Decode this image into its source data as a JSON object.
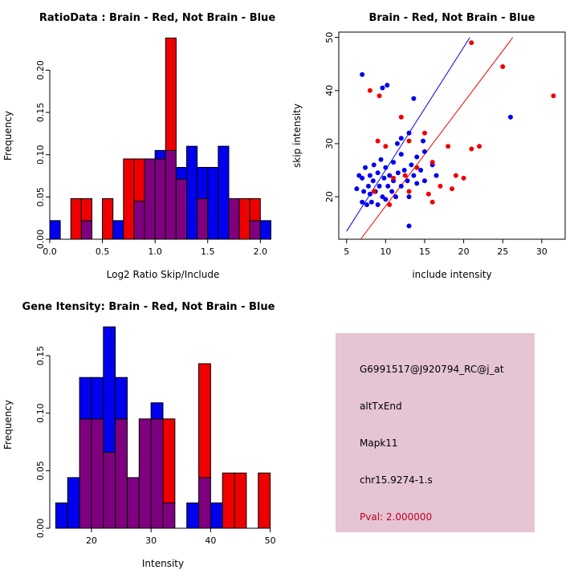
{
  "colors": {
    "red": "#EE0000",
    "blue": "#0000EE",
    "overlap": "#7F007F",
    "axis": "#000000",
    "info_bg": "#E5C4D4",
    "pval_text": "#C00020"
  },
  "chart_data": [
    {
      "type": "bar",
      "id": "ratio-histogram",
      "title": "RatioData : Brain - Red, Not Brain - Blue",
      "xlabel": "Log2 Ratio Skip/Include",
      "ylabel": "Frequency",
      "xlim": [
        0,
        2.15
      ],
      "ylim": [
        0,
        0.245
      ],
      "bin_width": 0.1,
      "bins": [
        0.0,
        0.1,
        0.2,
        0.3,
        0.4,
        0.5,
        0.6,
        0.7,
        0.8,
        0.9,
        1.0,
        1.1,
        1.2,
        1.3,
        1.4,
        1.5,
        1.6,
        1.7,
        1.8,
        1.9,
        2.0
      ],
      "xtick_vals": [
        0.0,
        0.5,
        1.0,
        1.5,
        2.0
      ],
      "xtick_labels": [
        "0.0",
        "0.5",
        "1.0",
        "1.5",
        "2.0"
      ],
      "ytick_vals": [
        0,
        0.05,
        0.1,
        0.15,
        0.2
      ],
      "ytick_labels": [
        "0.00",
        "0.05",
        "0.10",
        "0.15",
        "0.20"
      ],
      "series": [
        {
          "name": "Not Brain (blue)",
          "color": "blue",
          "values": [
            0.022,
            0,
            0,
            0.022,
            0,
            0,
            0.022,
            0,
            0.045,
            0.095,
            0.105,
            0.105,
            0.085,
            0.11,
            0.085,
            0.085,
            0.11,
            0.048,
            0,
            0.022,
            0.022
          ]
        },
        {
          "name": "Brain (red)",
          "color": "red",
          "values": [
            0,
            0,
            0.048,
            0.048,
            0,
            0.048,
            0,
            0.095,
            0.095,
            0.095,
            0.095,
            0.238,
            0.071,
            0,
            0.048,
            0,
            0,
            0.048,
            0.048,
            0.048,
            0
          ]
        }
      ]
    },
    {
      "type": "scatter",
      "id": "intensity-scatter",
      "title": "Brain - Red, Not Brain - Blue",
      "xlabel": "include intensity",
      "ylabel": "skip intensity",
      "xlim": [
        4,
        33
      ],
      "ylim": [
        12,
        51
      ],
      "xtick_vals": [
        5,
        10,
        15,
        20,
        25,
        30
      ],
      "xtick_labels": [
        "5",
        "10",
        "15",
        "20",
        "25",
        "30"
      ],
      "ytick_vals": [
        20,
        30,
        40,
        50
      ],
      "ytick_labels": [
        "20",
        "30",
        "40",
        "50"
      ],
      "series": [
        {
          "name": "Not Brain (blue)",
          "color": "blue",
          "points": [
            [
              6.3,
              21.5
            ],
            [
              6.6,
              24
            ],
            [
              7,
              19
            ],
            [
              7,
              23.5
            ],
            [
              7.2,
              21
            ],
            [
              7.4,
              25.5
            ],
            [
              7.6,
              18.5
            ],
            [
              7.8,
              22
            ],
            [
              8,
              20.5
            ],
            [
              8,
              24
            ],
            [
              8.2,
              19
            ],
            [
              8.4,
              23
            ],
            [
              8.5,
              26
            ],
            [
              8.7,
              21
            ],
            [
              9,
              18.5
            ],
            [
              9,
              24.5
            ],
            [
              9.2,
              22
            ],
            [
              9.4,
              27
            ],
            [
              9.6,
              20
            ],
            [
              9.8,
              23.5
            ],
            [
              10,
              19.5
            ],
            [
              10,
              25.5
            ],
            [
              10.3,
              22
            ],
            [
              10.5,
              24
            ],
            [
              10.8,
              21
            ],
            [
              11,
              23
            ],
            [
              11,
              26.5
            ],
            [
              11.3,
              20
            ],
            [
              11.6,
              24.5
            ],
            [
              12,
              22
            ],
            [
              12,
              28
            ],
            [
              12.4,
              25
            ],
            [
              12.8,
              23
            ],
            [
              13,
              20
            ],
            [
              13.3,
              26
            ],
            [
              13.6,
              24
            ],
            [
              14,
              22.5
            ],
            [
              14,
              27.5
            ],
            [
              14.5,
              25
            ],
            [
              15,
              23
            ],
            [
              15,
              28.5
            ],
            [
              16,
              26
            ],
            [
              16.5,
              24
            ],
            [
              12,
              31
            ],
            [
              13,
              32
            ],
            [
              11.5,
              30
            ],
            [
              14.8,
              30.5
            ],
            [
              7,
              43
            ],
            [
              9.6,
              40.5
            ],
            [
              10.2,
              41
            ],
            [
              13.6,
              38.5
            ],
            [
              26,
              35
            ],
            [
              13,
              14.5
            ]
          ]
        },
        {
          "name": "Brain (red)",
          "color": "red",
          "points": [
            [
              8,
              40
            ],
            [
              9.2,
              39
            ],
            [
              12,
              35
            ],
            [
              13,
              30.5
            ],
            [
              15,
              32
            ],
            [
              16,
              26.5
            ],
            [
              17,
              22
            ],
            [
              18,
              29.5
            ],
            [
              19,
              24
            ],
            [
              20,
              23.5
            ],
            [
              21,
              29
            ],
            [
              21,
              49
            ],
            [
              25,
              44.5
            ],
            [
              31.5,
              39
            ],
            [
              10,
              29.5
            ],
            [
              9,
              30.5
            ],
            [
              11,
              23.5
            ],
            [
              13,
              21
            ],
            [
              16,
              19
            ],
            [
              14,
              25.5
            ],
            [
              22,
              29.5
            ],
            [
              8.5,
              21
            ],
            [
              10.5,
              18.5
            ],
            [
              12.5,
              24
            ],
            [
              15.5,
              20.5
            ],
            [
              18.5,
              21.5
            ]
          ]
        }
      ],
      "lines": [
        {
          "color": "blue",
          "x1": 5.0,
          "y1": 13.5,
          "x2": 20.8,
          "y2": 50
        },
        {
          "color": "red",
          "x1": 6.8,
          "y1": 12.0,
          "x2": 26.3,
          "y2": 50
        }
      ]
    },
    {
      "type": "bar",
      "id": "gene-intensity-histogram",
      "title": "Gene Itensity: Brain - Red, Not Brain - Blue",
      "xlabel": "Intensity",
      "ylabel": "Frequency",
      "xlim": [
        13,
        51
      ],
      "ylim": [
        0,
        0.18
      ],
      "bin_width": 2,
      "bins": [
        14,
        16,
        18,
        20,
        22,
        24,
        26,
        28,
        30,
        32,
        34,
        36,
        38,
        40,
        42,
        44,
        46,
        48
      ],
      "xtick_vals": [
        20,
        30,
        40,
        50
      ],
      "xtick_labels": [
        "20",
        "30",
        "40",
        "50"
      ],
      "ytick_vals": [
        0,
        0.05,
        0.1,
        0.15
      ],
      "ytick_labels": [
        "0.00",
        "0.05",
        "0.10",
        "0.15"
      ],
      "series": [
        {
          "name": "Not Brain (blue)",
          "color": "blue",
          "values": [
            0.022,
            0.044,
            0.131,
            0.131,
            0.175,
            0.131,
            0.044,
            0.095,
            0.109,
            0.022,
            0,
            0.022,
            0.044,
            0.022,
            0,
            0,
            0,
            0
          ]
        },
        {
          "name": "Brain (red)",
          "color": "red",
          "values": [
            0,
            0,
            0.095,
            0.095,
            0.066,
            0.095,
            0.044,
            0.095,
            0.095,
            0.095,
            0,
            0,
            0.143,
            0,
            0.048,
            0.048,
            0,
            0.048
          ]
        }
      ]
    }
  ],
  "info_box": {
    "probe_id": "G6991517@J920794_RC@j_at",
    "event_type": "altTxEnd",
    "gene": "Mapk11",
    "location": "chr15.9274-1.s",
    "pval": "Pval: 2.000000"
  }
}
